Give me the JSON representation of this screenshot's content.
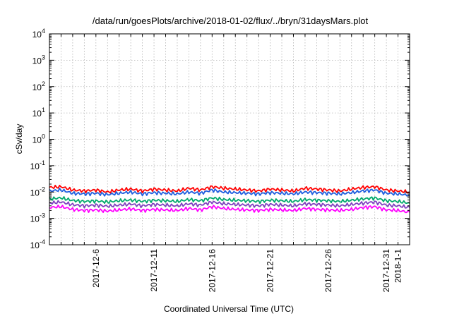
{
  "chart_data": {
    "type": "line",
    "title": "/data/run/goesPlots/archive/2018-01-02/flux/../bryn/31daysMars.plot",
    "xlabel": "Coordinated Universal Time (UTC)",
    "ylabel": "cSv/day",
    "y_scale": "log",
    "ylim": [
      0.0001,
      10000
    ],
    "y_ticks": [
      {
        "base": "10",
        "exp": "-4",
        "value": 0.0001
      },
      {
        "base": "10",
        "exp": "-3",
        "value": 0.001
      },
      {
        "base": "10",
        "exp": "-2",
        "value": 0.01
      },
      {
        "base": "10",
        "exp": "-1",
        "value": 0.1
      },
      {
        "base": "10",
        "exp": "0",
        "value": 1
      },
      {
        "base": "10",
        "exp": "1",
        "value": 10
      },
      {
        "base": "10",
        "exp": "2",
        "value": 100
      },
      {
        "base": "10",
        "exp": "3",
        "value": 1000
      },
      {
        "base": "10",
        "exp": "4",
        "value": 10000
      }
    ],
    "xlim": [
      "2017-12-02",
      "2018-01-02"
    ],
    "x_ticks": [
      "2017-12-6",
      "2017-12-11",
      "2017-12-16",
      "2017-12-21",
      "2017-12-26",
      "2017-12-31",
      "2018-1-1"
    ],
    "grid": true,
    "legend": "none",
    "x": [
      "2017-12-02",
      "2017-12-03",
      "2017-12-04",
      "2017-12-05",
      "2017-12-06",
      "2017-12-07",
      "2017-12-08",
      "2017-12-09",
      "2017-12-10",
      "2017-12-11",
      "2017-12-12",
      "2017-12-13",
      "2017-12-14",
      "2017-12-15",
      "2017-12-16",
      "2017-12-17",
      "2017-12-18",
      "2017-12-19",
      "2017-12-20",
      "2017-12-21",
      "2017-12-22",
      "2017-12-23",
      "2017-12-24",
      "2017-12-25",
      "2017-12-26",
      "2017-12-27",
      "2017-12-28",
      "2017-12-29",
      "2017-12-30",
      "2017-12-31",
      "2018-01-01",
      "2018-01-02"
    ],
    "series": [
      {
        "color": "#ff0000",
        "values": [
          0.015,
          0.016,
          0.012,
          0.011,
          0.012,
          0.01,
          0.012,
          0.013,
          0.011,
          0.013,
          0.012,
          0.011,
          0.014,
          0.012,
          0.016,
          0.014,
          0.013,
          0.012,
          0.011,
          0.013,
          0.012,
          0.011,
          0.014,
          0.013,
          0.012,
          0.011,
          0.013,
          0.015,
          0.016,
          0.012,
          0.011,
          0.01
        ]
      },
      {
        "color": "#1f5fe0",
        "values": [
          0.011,
          0.012,
          0.009,
          0.0085,
          0.009,
          0.008,
          0.009,
          0.01,
          0.0085,
          0.0095,
          0.009,
          0.0085,
          0.01,
          0.009,
          0.012,
          0.01,
          0.0095,
          0.009,
          0.0085,
          0.0095,
          0.009,
          0.0085,
          0.01,
          0.0095,
          0.009,
          0.0085,
          0.0095,
          0.011,
          0.012,
          0.009,
          0.0085,
          0.0075
        ]
      },
      {
        "color": "#00a86b",
        "values": [
          0.0055,
          0.006,
          0.0048,
          0.0044,
          0.0046,
          0.0042,
          0.0047,
          0.005,
          0.0044,
          0.0049,
          0.0047,
          0.0044,
          0.0052,
          0.0047,
          0.006,
          0.0052,
          0.0049,
          0.0047,
          0.0044,
          0.0049,
          0.0047,
          0.0044,
          0.0052,
          0.0049,
          0.0047,
          0.0044,
          0.0049,
          0.0055,
          0.006,
          0.0047,
          0.0044,
          0.0038
        ]
      },
      {
        "color": "#7f3fbf",
        "values": [
          0.0038,
          0.0042,
          0.0033,
          0.003,
          0.0032,
          0.0029,
          0.0032,
          0.0035,
          0.003,
          0.0034,
          0.0032,
          0.003,
          0.0036,
          0.0032,
          0.0042,
          0.0036,
          0.0034,
          0.0032,
          0.003,
          0.0034,
          0.0032,
          0.003,
          0.0036,
          0.0034,
          0.0032,
          0.003,
          0.0034,
          0.0038,
          0.0042,
          0.0032,
          0.003,
          0.0026
        ]
      },
      {
        "color": "#ff00ff",
        "values": [
          0.0026,
          0.0028,
          0.0022,
          0.002,
          0.0021,
          0.0019,
          0.0021,
          0.0023,
          0.002,
          0.0022,
          0.0021,
          0.002,
          0.0024,
          0.0021,
          0.0028,
          0.0024,
          0.0022,
          0.0021,
          0.002,
          0.0022,
          0.0021,
          0.002,
          0.0024,
          0.0022,
          0.0021,
          0.002,
          0.0022,
          0.0026,
          0.0028,
          0.0021,
          0.002,
          0.0017
        ]
      }
    ]
  }
}
